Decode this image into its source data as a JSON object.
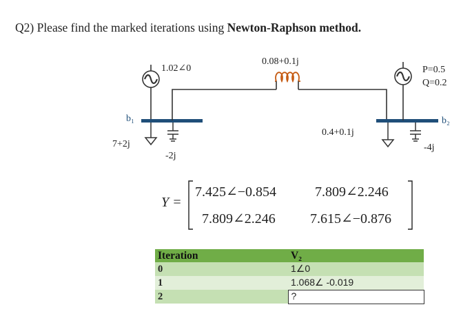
{
  "question": {
    "prefix": "Q2) Please find the marked iterations using ",
    "bold": "Newton-Raphson method."
  },
  "circuit": {
    "gen1_label": "1.02∠0",
    "line_label": "0.08+0.1j",
    "gen2_p": "P=0.5",
    "gen2_q": "Q=0.2",
    "bus1_label": "b₁",
    "bus2_label": "b₂",
    "load1_label": "7+2j",
    "cap1_label": "-2j",
    "load2_label": "0.4+0.1j",
    "cap2_label": "-4j",
    "bus_color": "#1f4e79"
  },
  "matrix": {
    "name": "Y =",
    "y11": "7.425∠−0.854",
    "y12": "7.809∠2.246",
    "y21": "7.809∠2.246",
    "y22": "7.615∠−0.876"
  },
  "table": {
    "col1": "Iteration",
    "col2": "V₂",
    "rows": [
      {
        "iteration": "0",
        "value": "1∠0"
      },
      {
        "iteration": "1",
        "value": "1.068∠ -0.019"
      },
      {
        "iteration": "2",
        "value": "?"
      }
    ]
  }
}
